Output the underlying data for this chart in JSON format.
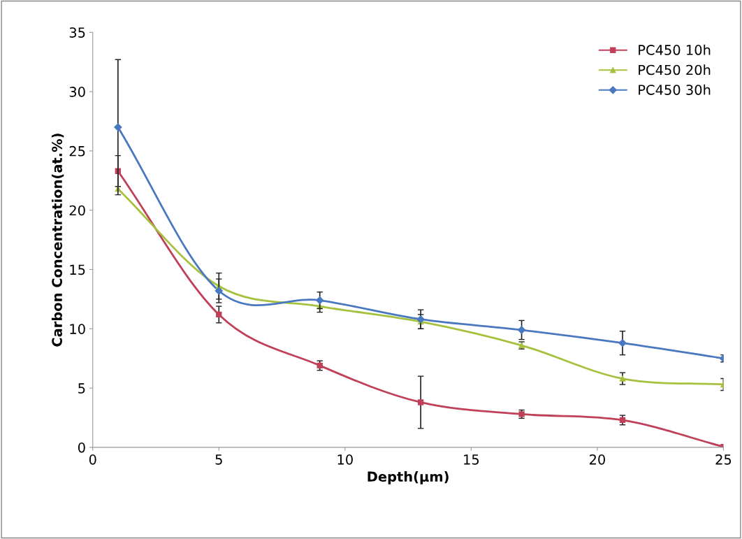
{
  "chart_data": {
    "type": "line",
    "xlabel": "Depth(μm)",
    "ylabel": "Carbon Concentration(at.%)",
    "x": [
      1,
      5,
      9,
      13,
      17,
      21,
      25
    ],
    "xlim": [
      0,
      25
    ],
    "xticks": [
      0,
      5,
      10,
      15,
      20,
      25
    ],
    "ylim": [
      0,
      35
    ],
    "yticks": [
      0,
      5,
      10,
      15,
      20,
      25,
      30,
      35
    ],
    "grid": false,
    "legend": "top right",
    "series": [
      {
        "name": "PC450 10h",
        "color": "#c0405a",
        "marker": "square",
        "values": [
          23.3,
          11.2,
          6.9,
          3.8,
          2.8,
          2.3,
          0.05
        ],
        "errors": [
          1.3,
          0.7,
          0.4,
          2.2,
          0.35,
          0.4,
          null
        ]
      },
      {
        "name": "PC450 20h",
        "color": "#a6c13e",
        "marker": "triangle",
        "values": [
          21.8,
          13.6,
          11.9,
          10.6,
          8.6,
          5.8,
          5.3
        ],
        "errors": [
          null,
          1.1,
          0.5,
          0.6,
          0.3,
          0.5,
          0.5
        ]
      },
      {
        "name": "PC450 30h",
        "color": "#4a78c0",
        "marker": "diamond",
        "values": [
          27,
          13.2,
          12.4,
          10.8,
          9.9,
          8.8,
          7.5
        ],
        "errors": [
          5.7,
          1.0,
          0.7,
          0.8,
          0.8,
          1.0,
          0.3
        ]
      }
    ]
  }
}
